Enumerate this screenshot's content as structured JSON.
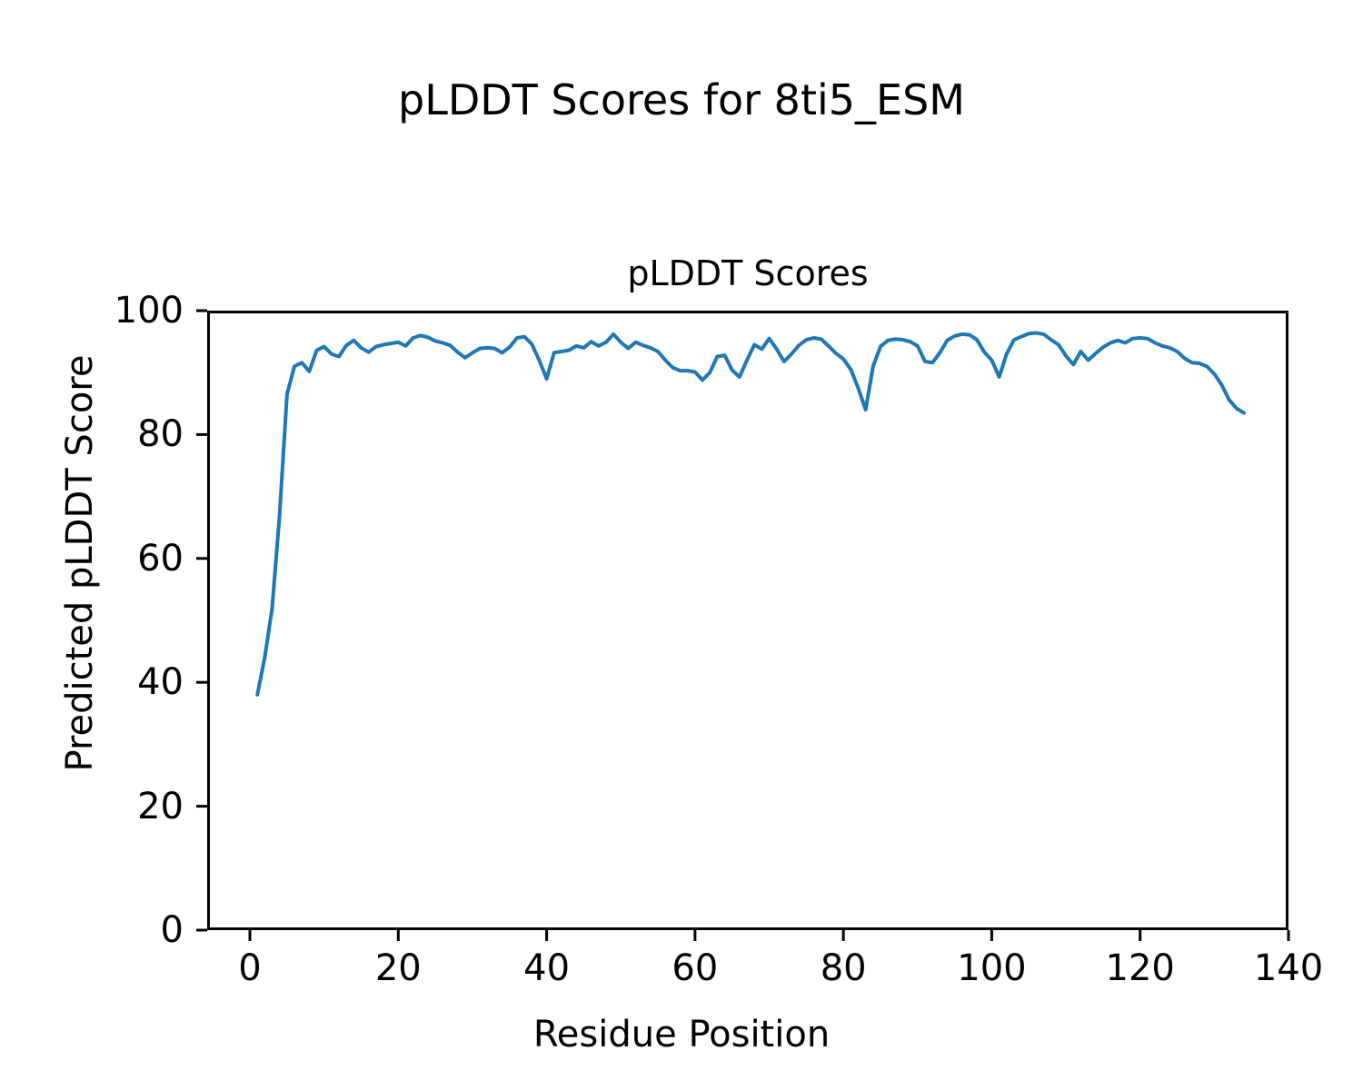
{
  "figure": {
    "suptitle": "pLDDT Scores for 8ti5_ESM",
    "background_color": "#ffffff",
    "text_color": "#000000"
  },
  "chart_data": {
    "type": "line",
    "title": "pLDDT Scores",
    "xlabel": "Residue Position",
    "ylabel": "Predicted pLDDT Score",
    "xlim": [
      -5.76,
      140
    ],
    "ylim": [
      0,
      100
    ],
    "xticks": [
      0,
      20,
      40,
      60,
      80,
      100,
      120,
      140
    ],
    "yticks": [
      0,
      20,
      40,
      60,
      80,
      100
    ],
    "grid": false,
    "legend_position": "none",
    "line_color": "#1f77b4",
    "axis_color": "#000000",
    "series": [
      {
        "name": "pLDDT",
        "x": [
          1,
          2,
          3,
          4,
          5,
          6,
          7,
          8,
          9,
          10,
          11,
          12,
          13,
          14,
          15,
          16,
          17,
          18,
          19,
          20,
          21,
          22,
          23,
          24,
          25,
          26,
          27,
          28,
          29,
          30,
          31,
          32,
          33,
          34,
          35,
          36,
          37,
          38,
          39,
          40,
          41,
          42,
          43,
          44,
          45,
          46,
          47,
          48,
          49,
          50,
          51,
          52,
          53,
          54,
          55,
          56,
          57,
          58,
          59,
          60,
          61,
          62,
          63,
          64,
          65,
          66,
          67,
          68,
          69,
          70,
          71,
          72,
          73,
          74,
          75,
          76,
          77,
          78,
          79,
          80,
          81,
          82,
          83,
          84,
          85,
          86,
          87,
          88,
          89,
          90,
          91,
          92,
          93,
          94,
          95,
          96,
          97,
          98,
          99,
          100,
          101,
          102,
          103,
          104,
          105,
          106,
          107,
          108,
          109,
          110,
          111,
          112,
          113,
          114,
          115,
          116,
          117,
          118,
          119,
          120,
          121,
          122,
          123,
          124,
          125,
          126,
          127,
          128,
          129,
          130,
          131,
          132,
          133,
          134
        ],
        "y": [
          38.0,
          44.0,
          52.0,
          67.0,
          86.5,
          91.0,
          91.6,
          90.2,
          93.6,
          94.2,
          93.0,
          92.6,
          94.4,
          95.2,
          94.0,
          93.3,
          94.2,
          94.5,
          94.7,
          94.9,
          94.3,
          95.6,
          96.0,
          95.7,
          95.1,
          94.8,
          94.4,
          93.3,
          92.4,
          93.2,
          93.9,
          94.0,
          93.9,
          93.2,
          94.1,
          95.6,
          95.8,
          94.6,
          92.0,
          89.0,
          93.2,
          93.4,
          93.6,
          94.3,
          94.0,
          95.0,
          94.3,
          94.9,
          96.2,
          94.9,
          93.9,
          94.9,
          94.4,
          94.0,
          93.4,
          92.0,
          90.8,
          90.3,
          90.3,
          90.1,
          88.8,
          90.0,
          92.6,
          92.8,
          90.4,
          89.3,
          92.0,
          94.5,
          93.8,
          95.5,
          93.8,
          91.8,
          93.0,
          94.4,
          95.3,
          95.6,
          95.4,
          94.3,
          93.1,
          92.2,
          90.5,
          87.5,
          84.0,
          91.0,
          94.2,
          95.2,
          95.4,
          95.3,
          95.0,
          94.3,
          91.8,
          91.6,
          93.2,
          95.2,
          95.9,
          96.2,
          96.1,
          95.3,
          93.3,
          92.0,
          89.3,
          93.0,
          95.3,
          95.8,
          96.3,
          96.4,
          96.2,
          95.3,
          94.5,
          92.7,
          91.3,
          93.4,
          92.0,
          93.1,
          94.1,
          94.8,
          95.2,
          94.8,
          95.5,
          95.6,
          95.5,
          94.8,
          94.3,
          94.0,
          93.4,
          92.3,
          91.6,
          91.5,
          91.0,
          89.8,
          88.0,
          85.6,
          84.2,
          83.5
        ]
      }
    ]
  }
}
